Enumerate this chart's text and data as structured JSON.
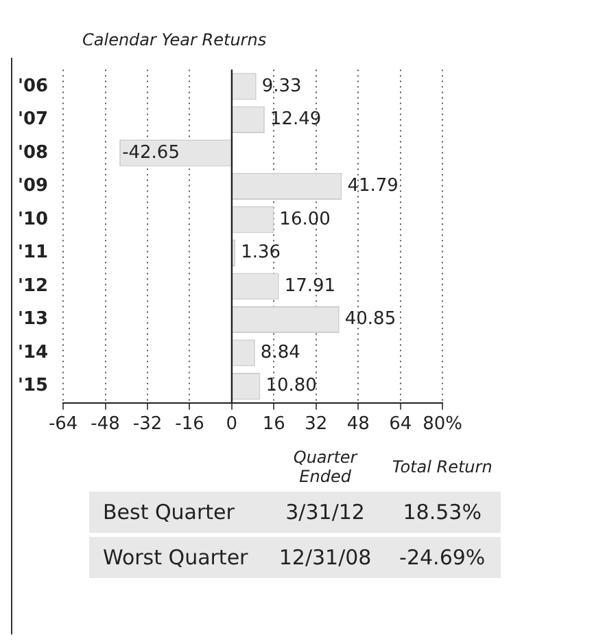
{
  "chart_data": {
    "type": "bar",
    "subtitle": "Calendar Year Returns",
    "orientation": "horizontal",
    "categories": [
      "'06",
      "'07",
      "'08",
      "'09",
      "'10",
      "'11",
      "'12",
      "'13",
      "'14",
      "'15"
    ],
    "values": [
      9.33,
      12.49,
      -42.65,
      41.79,
      16.0,
      1.36,
      17.91,
      40.85,
      8.84,
      10.8
    ],
    "value_labels": [
      "9.33",
      "12.49",
      "-42.65",
      "41.79",
      "16.00",
      "1.36",
      "17.91",
      "40.85",
      "8.84",
      "10.80"
    ],
    "color": "#e6e6e6",
    "xlim": [
      -64,
      80
    ],
    "xticks": [
      -64,
      -48,
      -32,
      -16,
      0,
      16,
      32,
      48,
      64,
      {
        "value": 80,
        "label": "80%"
      }
    ],
    "grid": "x",
    "annotations": [
      "Quarter Ended",
      "Total Return",
      "Best Quarter",
      "3/31/12",
      "18.53%",
      "Worst Quarter",
      "12/31/08",
      "-24.69%"
    ]
  }
}
